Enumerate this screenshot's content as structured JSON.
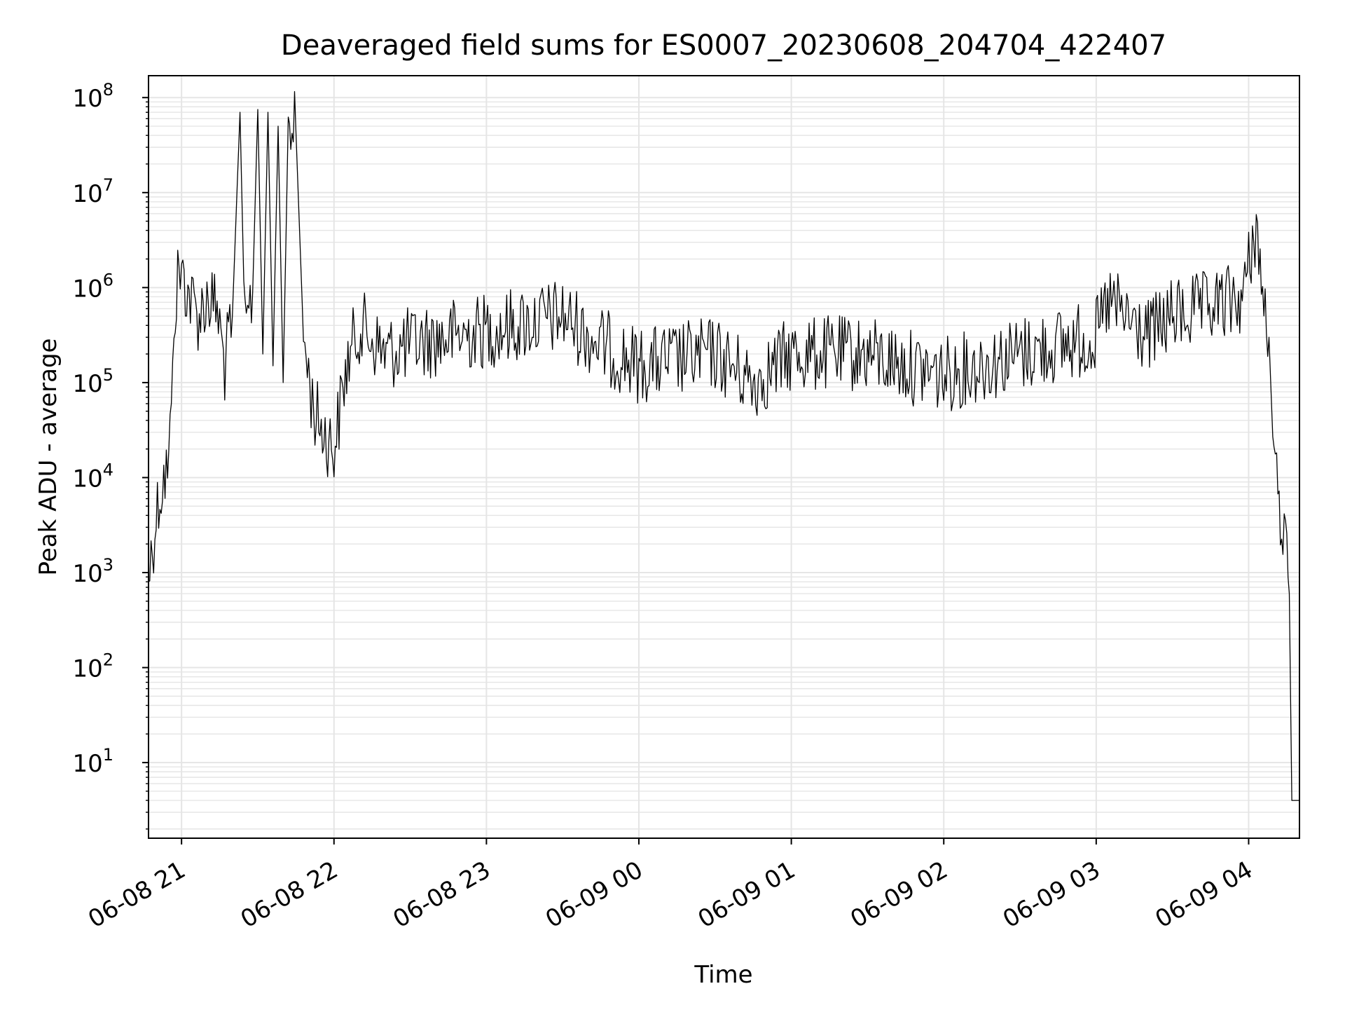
{
  "colors": {
    "line": "#000000",
    "grid": "#e5e5e5",
    "axis": "#000000",
    "background": "#ffffff"
  },
  "chart_data": {
    "type": "line",
    "title": "Deaveraged field sums for ES0007_20230608_204704_422407",
    "xlabel": "Time",
    "ylabel": "Peak ADU - average",
    "xscale": "time",
    "yscale": "log",
    "xlim": [
      "2023-06-08 20:47",
      "2023-06-09 04:20"
    ],
    "ylim": [
      1.6,
      170000000
    ],
    "grid": {
      "major": true,
      "minor": true
    },
    "legend": "none",
    "x_ticks": [
      {
        "value": "2023-06-08 21:00",
        "label": "06-08 21"
      },
      {
        "value": "2023-06-08 22:00",
        "label": "06-08 22"
      },
      {
        "value": "2023-06-08 23:00",
        "label": "06-08 23"
      },
      {
        "value": "2023-06-09 00:00",
        "label": "06-09 00"
      },
      {
        "value": "2023-06-09 01:00",
        "label": "06-09 01"
      },
      {
        "value": "2023-06-09 02:00",
        "label": "06-09 02"
      },
      {
        "value": "2023-06-09 03:00",
        "label": "06-09 03"
      },
      {
        "value": "2023-06-09 04:00",
        "label": "06-09 04"
      }
    ],
    "y_ticks": [
      {
        "value": 10,
        "base": "10",
        "exp": "1"
      },
      {
        "value": 100,
        "base": "10",
        "exp": "2"
      },
      {
        "value": 1000,
        "base": "10",
        "exp": "3"
      },
      {
        "value": 10000,
        "base": "10",
        "exp": "4"
      },
      {
        "value": 100000,
        "base": "10",
        "exp": "5"
      },
      {
        "value": 1000000,
        "base": "10",
        "exp": "6"
      },
      {
        "value": 10000000,
        "base": "10",
        "exp": "7"
      },
      {
        "value": 100000000,
        "base": "10",
        "exp": "8"
      }
    ],
    "series": [
      {
        "points": [
          [
            "2023-06-08 20:47",
            800
          ],
          [
            "2023-06-08 20:48",
            1500
          ],
          [
            "2023-06-08 20:49",
            2500
          ],
          [
            "2023-06-08 20:51",
            6000
          ],
          [
            "2023-06-08 20:53",
            10000
          ],
          [
            "2023-06-08 20:55",
            12000
          ],
          [
            "2023-06-08 20:56",
            60000
          ],
          [
            "2023-06-08 20:57",
            500000
          ],
          [
            "2023-06-08 20:59",
            1600000
          ],
          [
            "2023-06-08 21:01",
            1200000
          ],
          [
            "2023-06-08 21:04",
            700000
          ],
          [
            "2023-06-08 21:07",
            500000
          ],
          [
            "2023-06-08 21:10",
            800000
          ],
          [
            "2023-06-08 21:14",
            600000
          ],
          [
            "2023-06-08 21:17",
            150000
          ],
          [
            "2023-06-08 21:20",
            500000
          ],
          [
            "2023-06-08 21:23",
            70000000
          ],
          [
            "2023-06-08 21:25",
            300000
          ],
          [
            "2023-06-08 21:28",
            900000
          ],
          [
            "2023-06-08 21:30",
            75000000
          ],
          [
            "2023-06-08 21:32",
            200000
          ],
          [
            "2023-06-08 21:34",
            70000000
          ],
          [
            "2023-06-08 21:36",
            150000
          ],
          [
            "2023-06-08 21:38",
            50000000
          ],
          [
            "2023-06-08 21:40",
            100000
          ],
          [
            "2023-06-08 21:42",
            60000000
          ],
          [
            "2023-06-08 21:45",
            45000000
          ],
          [
            "2023-06-08 21:48",
            300000
          ],
          [
            "2023-06-08 21:52",
            50000
          ],
          [
            "2023-06-08 21:56",
            30000
          ],
          [
            "2023-06-08 22:00",
            20000
          ],
          [
            "2023-06-08 22:05",
            150000
          ],
          [
            "2023-06-08 22:10",
            400000
          ],
          [
            "2023-06-08 22:20",
            200000
          ],
          [
            "2023-06-08 22:30",
            250000
          ],
          [
            "2023-06-08 22:45",
            300000
          ],
          [
            "2023-06-08 23:00",
            350000
          ],
          [
            "2023-06-08 23:30",
            500000
          ],
          [
            "2023-06-08 23:45",
            250000
          ],
          [
            "2023-06-09 00:00",
            150000
          ],
          [
            "2023-06-09 00:30",
            200000
          ],
          [
            "2023-06-09 00:45",
            100000
          ],
          [
            "2023-06-09 01:00",
            200000
          ],
          [
            "2023-06-09 01:30",
            200000
          ],
          [
            "2023-06-09 01:45",
            150000
          ],
          [
            "2023-06-09 02:00",
            120000
          ],
          [
            "2023-06-09 02:30",
            200000
          ],
          [
            "2023-06-09 03:00",
            300000
          ],
          [
            "2023-06-09 03:05",
            700000
          ],
          [
            "2023-06-09 03:20",
            300000
          ],
          [
            "2023-06-09 03:30",
            500000
          ],
          [
            "2023-06-09 03:45",
            600000
          ],
          [
            "2023-06-09 03:58",
            800000
          ],
          [
            "2023-06-09 04:03",
            4800000
          ],
          [
            "2023-06-09 04:05",
            1000000
          ],
          [
            "2023-06-09 04:08",
            300000
          ],
          [
            "2023-06-09 04:10",
            12000
          ],
          [
            "2023-06-09 04:12",
            5000
          ],
          [
            "2023-06-09 04:14",
            3000
          ],
          [
            "2023-06-09 04:16",
            600
          ],
          [
            "2023-06-09 04:17",
            4
          ],
          [
            "2023-06-09 04:20",
            4
          ]
        ]
      }
    ]
  }
}
